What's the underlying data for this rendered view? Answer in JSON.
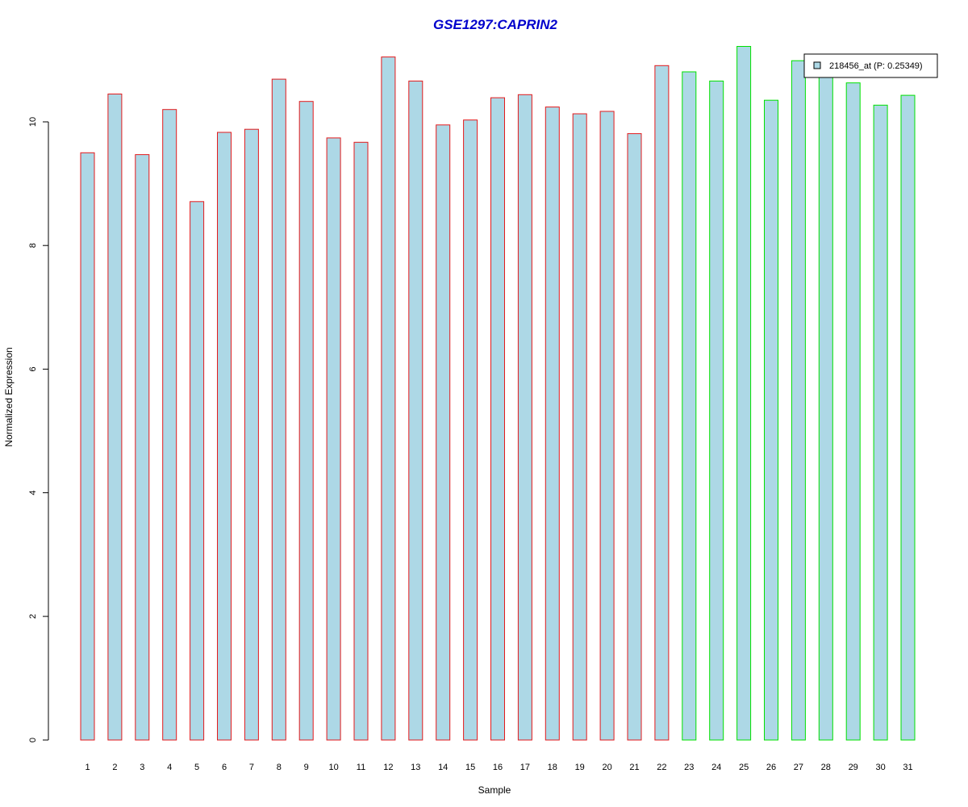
{
  "chart_data": {
    "type": "bar",
    "title": "GSE1297:CAPRIN2",
    "xlabel": "Sample",
    "ylabel": "Normalized Expression",
    "ylim": [
      0,
      11.2
    ],
    "yticks": [
      0,
      2,
      4,
      6,
      8,
      10
    ],
    "categories": [
      "1",
      "2",
      "3",
      "4",
      "5",
      "6",
      "7",
      "8",
      "9",
      "10",
      "11",
      "12",
      "13",
      "14",
      "15",
      "16",
      "17",
      "18",
      "19",
      "20",
      "21",
      "22",
      "23",
      "24",
      "25",
      "26",
      "27",
      "28",
      "29",
      "30",
      "31"
    ],
    "series": [
      {
        "name": "218456_at (P: 0.25349)",
        "values": [
          9.5,
          10.45,
          9.47,
          10.2,
          8.71,
          9.83,
          9.88,
          10.69,
          10.33,
          9.74,
          9.67,
          11.05,
          10.66,
          9.95,
          10.03,
          10.39,
          10.44,
          10.24,
          10.13,
          10.17,
          9.81,
          10.91,
          10.81,
          10.66,
          11.22,
          10.35,
          10.99,
          10.82,
          10.63,
          10.27,
          10.43
        ]
      }
    ],
    "bar_groups": [
      "control",
      "control",
      "control",
      "control",
      "control",
      "control",
      "control",
      "control",
      "control",
      "control",
      "control",
      "control",
      "control",
      "control",
      "control",
      "control",
      "control",
      "control",
      "control",
      "control",
      "control",
      "control",
      "case",
      "case",
      "case",
      "case",
      "case",
      "case",
      "case",
      "case",
      "case"
    ],
    "legend": {
      "position": "top-right"
    },
    "grid": false
  },
  "colors": {
    "title": "#0000cc",
    "bar_fill": "#add8e6",
    "border_control": "#e31a1c",
    "border_case": "#00e000",
    "axis": "#000000"
  }
}
